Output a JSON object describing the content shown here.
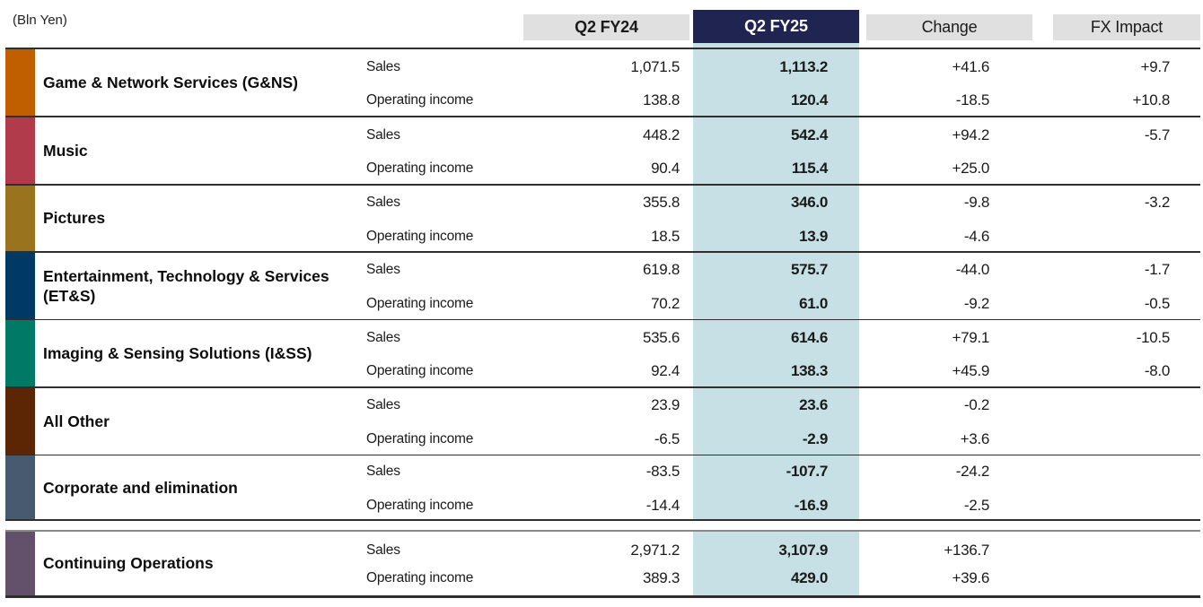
{
  "unit_label": "(Bln Yen)",
  "header": {
    "columns": [
      "Q2 FY24",
      "Q2 FY25",
      "Change",
      "FX Impact"
    ]
  },
  "colors": {
    "header_cell_bg": "#e0e0e0",
    "header_highlight_bg": "#1f2451",
    "highlight_column_bg": "#c6e0e5"
  },
  "chart_data": {
    "type": "table",
    "unit": "(Bln Yen)",
    "columns": [
      "Q2 FY24",
      "Q2 FY25",
      "Change",
      "FX Impact"
    ],
    "highlight_column": "Q2 FY25",
    "segments": [
      {
        "name": "Game & Network Services (G&NS)",
        "color": "#c05f00",
        "rows": [
          {
            "label": "Sales",
            "values": [
              "1,071.5",
              "1,113.2",
              "+41.6",
              "+9.7"
            ]
          },
          {
            "label": "Operating income",
            "values": [
              "138.8",
              "120.4",
              "-18.5",
              "+10.8"
            ]
          }
        ]
      },
      {
        "name": "Music",
        "color": "#b13b4b",
        "rows": [
          {
            "label": "Sales",
            "values": [
              "448.2",
              "542.4",
              "+94.2",
              "-5.7"
            ]
          },
          {
            "label": "Operating income",
            "values": [
              "90.4",
              "115.4",
              "+25.0",
              ""
            ]
          }
        ]
      },
      {
        "name": "Pictures",
        "color": "#9a731e",
        "rows": [
          {
            "label": "Sales",
            "values": [
              "355.8",
              "346.0",
              "-9.8",
              "-3.2"
            ]
          },
          {
            "label": "Operating income",
            "values": [
              "18.5",
              "13.9",
              "-4.6",
              ""
            ]
          }
        ]
      },
      {
        "name": "Entertainment, Technology & Services (ET&S)",
        "color": "#003963",
        "rows": [
          {
            "label": "Sales",
            "values": [
              "619.8",
              "575.7",
              "-44.0",
              "-1.7"
            ]
          },
          {
            "label": "Operating income",
            "values": [
              "70.2",
              "61.0",
              "-9.2",
              "-0.5"
            ]
          }
        ]
      },
      {
        "name": "Imaging & Sensing Solutions (I&SS)",
        "color": "#007a66",
        "rows": [
          {
            "label": "Sales",
            "values": [
              "535.6",
              "614.6",
              "+79.1",
              "-10.5"
            ]
          },
          {
            "label": "Operating income",
            "values": [
              "92.4",
              "138.3",
              "+45.9",
              "-8.0"
            ]
          }
        ]
      },
      {
        "name": "All Other",
        "color": "#5c2503",
        "rows": [
          {
            "label": "Sales",
            "values": [
              "23.9",
              "23.6",
              "-0.2",
              ""
            ]
          },
          {
            "label": "Operating income",
            "values": [
              "-6.5",
              "-2.9",
              "+3.6",
              ""
            ]
          }
        ]
      },
      {
        "name": "Corporate and elimination",
        "color": "#475a70",
        "rows": [
          {
            "label": "Sales",
            "values": [
              "-83.5",
              "-107.7",
              "-24.2",
              ""
            ]
          },
          {
            "label": "Operating income",
            "values": [
              "-14.4",
              "-16.9",
              "-2.5",
              ""
            ]
          }
        ]
      }
    ],
    "total": {
      "name": "Continuing Operations",
      "color": "#63506a",
      "rows": [
        {
          "label": "Sales",
          "values": [
            "2,971.2",
            "3,107.9",
            "+136.7",
            ""
          ]
        },
        {
          "label": "Operating income",
          "values": [
            "389.3",
            "429.0",
            "+39.6",
            ""
          ]
        }
      ]
    }
  }
}
